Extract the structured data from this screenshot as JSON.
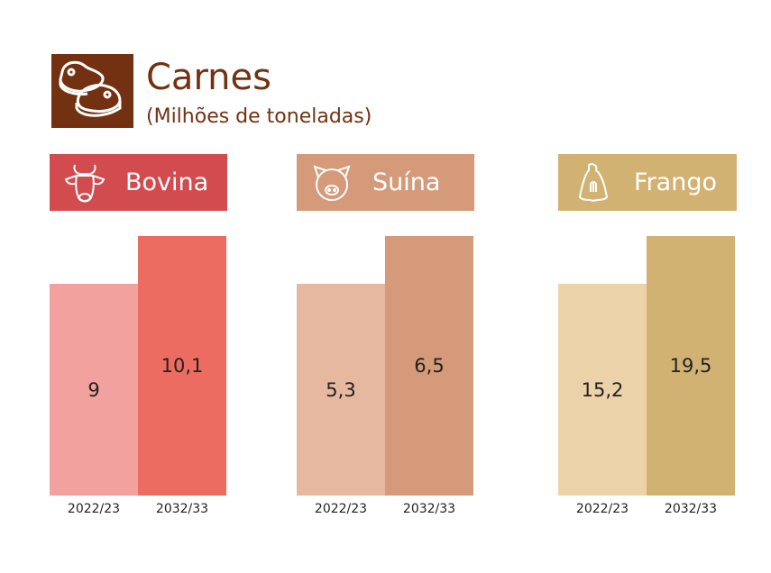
{
  "chart_data": {
    "type": "bar",
    "title": "Carnes",
    "subtitle": "(Milhões de toneladas)",
    "categories": [
      "2022/23",
      "2032/33"
    ],
    "groups": [
      {
        "name": "Bovina",
        "icon": "cow-icon",
        "color": "#d24b4e",
        "values": [
          9,
          10.1
        ],
        "labels": [
          "9",
          "10,1"
        ],
        "bar_colors": [
          "#f2a19f",
          "#ec6c61"
        ]
      },
      {
        "name": "Suína",
        "icon": "pig-icon",
        "color": "#d49a7a",
        "values": [
          5.3,
          6.5
        ],
        "labels": [
          "5,3",
          "6,5"
        ],
        "bar_colors": [
          "#e7b8a0",
          "#d49a7a"
        ]
      },
      {
        "name": "Frango",
        "icon": "chicken-icon",
        "color": "#d2b273",
        "values": [
          15.2,
          19.5
        ],
        "labels": [
          "15,2",
          "19,5"
        ],
        "bar_colors": [
          "#ecd2a8",
          "#d2b273"
        ]
      }
    ]
  }
}
